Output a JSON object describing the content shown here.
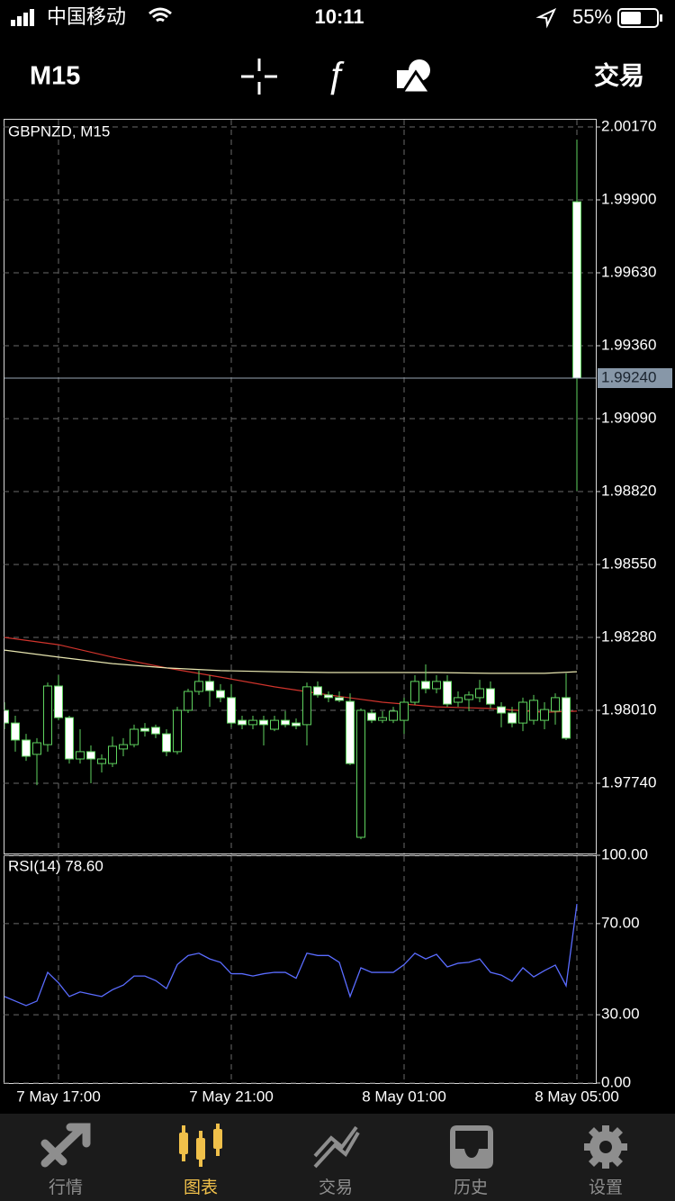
{
  "status_bar": {
    "carrier": "中国移动",
    "time": "10:11",
    "battery": "55%"
  },
  "toolbar": {
    "timeframe": "M15",
    "action": "交易"
  },
  "chart_data": [
    {
      "type": "candlestick",
      "title": "GBPNZD, M15",
      "categories": [
        null,
        null,
        null,
        null,
        null,
        "7 May 17:00",
        null,
        null,
        null,
        null,
        null,
        null,
        null,
        null,
        null,
        null,
        null,
        null,
        null,
        null,
        null,
        "7 May 21:00",
        null,
        null,
        null,
        null,
        null,
        null,
        null,
        null,
        null,
        null,
        null,
        null,
        null,
        null,
        null,
        "8 May 01:00",
        null,
        null,
        null,
        null,
        null,
        null,
        null,
        null,
        null,
        null,
        null,
        null,
        null,
        null,
        null,
        "8 May 05:00"
      ],
      "open": [
        1.9801,
        1.97963,
        1.979,
        1.97847,
        1.97883,
        1.981,
        1.97983,
        1.9783,
        1.97857,
        1.97813,
        1.97813,
        1.97867,
        1.97883,
        1.97943,
        1.97947,
        1.97923,
        1.97857,
        1.9801,
        1.9808,
        1.98117,
        1.98083,
        1.98057,
        1.97973,
        1.97957,
        1.97973,
        1.9794,
        1.97973,
        1.97963,
        1.97957,
        1.98097,
        1.98067,
        1.98057,
        1.98043,
        1.9754,
        1.98,
        1.97973,
        1.97973,
        1.97973,
        1.9804,
        1.98117,
        1.9809,
        1.98117,
        1.9804,
        1.9805,
        1.98057,
        1.9809,
        1.98023,
        1.98,
        1.97963,
        1.97973,
        1.97973,
        1.98007,
        1.98057,
        1.99893
      ],
      "high": [
        1.9804,
        1.9799,
        1.97923,
        1.97907,
        1.98113,
        1.9814,
        1.9799,
        1.9794,
        1.9788,
        1.97847,
        1.97913,
        1.97907,
        1.97957,
        1.97963,
        1.97957,
        1.9794,
        1.98023,
        1.9809,
        1.98157,
        1.9814,
        1.98107,
        1.98107,
        1.9799,
        1.9799,
        1.9799,
        1.9799,
        1.98007,
        1.9798,
        1.98113,
        1.98117,
        1.9808,
        1.9808,
        1.98073,
        1.98017,
        1.98013,
        1.98007,
        1.98023,
        1.98057,
        1.9814,
        1.9818,
        1.9814,
        1.9814,
        1.9808,
        1.9808,
        1.98123,
        1.98117,
        1.9804,
        1.98023,
        1.98057,
        1.98067,
        1.9804,
        1.98073,
        1.98147,
        2.00123
      ],
      "low": [
        1.9794,
        1.97857,
        1.97823,
        1.97733,
        1.97857,
        1.97973,
        1.97813,
        1.97813,
        1.9774,
        1.9778,
        1.978,
        1.9784,
        1.97873,
        1.97913,
        1.97907,
        1.9784,
        1.97847,
        1.98,
        1.98067,
        1.98023,
        1.9804,
        1.97947,
        1.9794,
        1.9794,
        1.9788,
        1.97933,
        1.97947,
        1.9794,
        1.9788,
        1.98057,
        1.9804,
        1.9804,
        1.97807,
        1.97533,
        1.97963,
        1.97963,
        1.97963,
        1.97923,
        1.9803,
        1.98073,
        1.98073,
        1.98023,
        1.98023,
        1.98007,
        1.9804,
        1.98017,
        1.97947,
        1.97947,
        1.97933,
        1.97957,
        1.9794,
        1.97957,
        1.979,
        1.98823
      ],
      "close": [
        1.97963,
        1.979,
        1.9784,
        1.9789,
        1.981,
        1.97983,
        1.9783,
        1.97857,
        1.9783,
        1.9783,
        1.97877,
        1.97883,
        1.9794,
        1.97933,
        1.97923,
        1.97857,
        1.9801,
        1.9808,
        1.98117,
        1.98083,
        1.98057,
        1.97963,
        1.97957,
        1.97973,
        1.97957,
        1.97973,
        1.97957,
        1.97953,
        1.98097,
        1.98067,
        1.98057,
        1.98047,
        1.97813,
        1.9801,
        1.97973,
        1.97983,
        1.98007,
        1.9804,
        1.98117,
        1.9809,
        1.98117,
        1.98033,
        1.98057,
        1.98067,
        1.9809,
        1.98033,
        1.98,
        1.97963,
        1.9804,
        1.98047,
        1.98013,
        1.98057,
        1.97907,
        1.9924
      ],
      "up_color": "#000000",
      "down_color": "#ffffff",
      "wick_color": "#5fd35f",
      "indicators": [
        {
          "color": "#d0342c",
          "x": [
            0,
            5,
            10,
            15,
            20,
            25,
            30,
            35,
            40,
            45,
            50,
            53
          ],
          "values": [
            1.9828,
            1.98253,
            1.98207,
            1.98167,
            1.98133,
            1.98097,
            1.98067,
            1.9804,
            1.98023,
            1.98017,
            1.98003,
            1.98007
          ]
        },
        {
          "color": "#e8e6b0",
          "x": [
            0,
            5,
            10,
            15,
            20,
            25,
            30,
            35,
            40,
            45,
            50,
            53
          ],
          "values": [
            1.98233,
            1.98207,
            1.98183,
            1.98167,
            1.98157,
            1.98153,
            1.9815,
            1.9815,
            1.9815,
            1.98147,
            1.98147,
            1.98153
          ]
        }
      ],
      "current_price": {
        "value": 1.9924,
        "label": "1.99240"
      },
      "ylim": [
        1.9748,
        2.002
      ],
      "yticks": [
        {
          "value": 2.0017,
          "label": "2.00170"
        },
        {
          "value": 1.999,
          "label": "1.99900"
        },
        {
          "value": 1.9963,
          "label": "1.99630"
        },
        {
          "value": 1.9936,
          "label": "1.99360"
        },
        {
          "value": 1.9909,
          "label": "1.99090"
        },
        {
          "value": 1.9882,
          "label": "1.98820"
        },
        {
          "value": 1.9855,
          "label": "1.98550"
        },
        {
          "value": 1.9828,
          "label": "1.98280"
        },
        {
          "value": 1.9801,
          "label": "1.98010"
        },
        {
          "value": 1.9774,
          "label": "1.97740"
        }
      ],
      "grid": true
    },
    {
      "type": "line",
      "title": "RSI(14) 78.60",
      "color": "#5a6cff",
      "values": [
        38,
        36,
        34,
        36,
        48.6,
        44,
        38,
        40,
        39,
        38,
        41,
        43,
        47,
        47,
        45,
        41.5,
        52,
        56,
        57,
        54.5,
        53,
        48,
        48,
        47,
        48,
        48.6,
        48.6,
        46,
        57,
        56,
        56,
        53,
        38,
        50.6,
        48.6,
        48.6,
        48.6,
        52,
        57,
        54.5,
        56.5,
        51,
        52.6,
        53,
        54.5,
        48.6,
        47.4,
        44.7,
        50.6,
        46.6,
        49.4,
        51.8,
        42.7,
        78.6
      ],
      "ylim": [
        0,
        100
      ],
      "yticks": [
        {
          "value": 100,
          "label": "100.00"
        },
        {
          "value": 70,
          "label": "70.00"
        },
        {
          "value": 30,
          "label": "30.00"
        },
        {
          "value": 0,
          "label": "0.00"
        }
      ],
      "grid": true
    }
  ],
  "tab_bar": {
    "tabs": [
      "行情",
      "图表",
      "交易",
      "历史",
      "设置"
    ],
    "active": 1,
    "color": "#8e8e8e",
    "active_color": "#f0c04a"
  }
}
